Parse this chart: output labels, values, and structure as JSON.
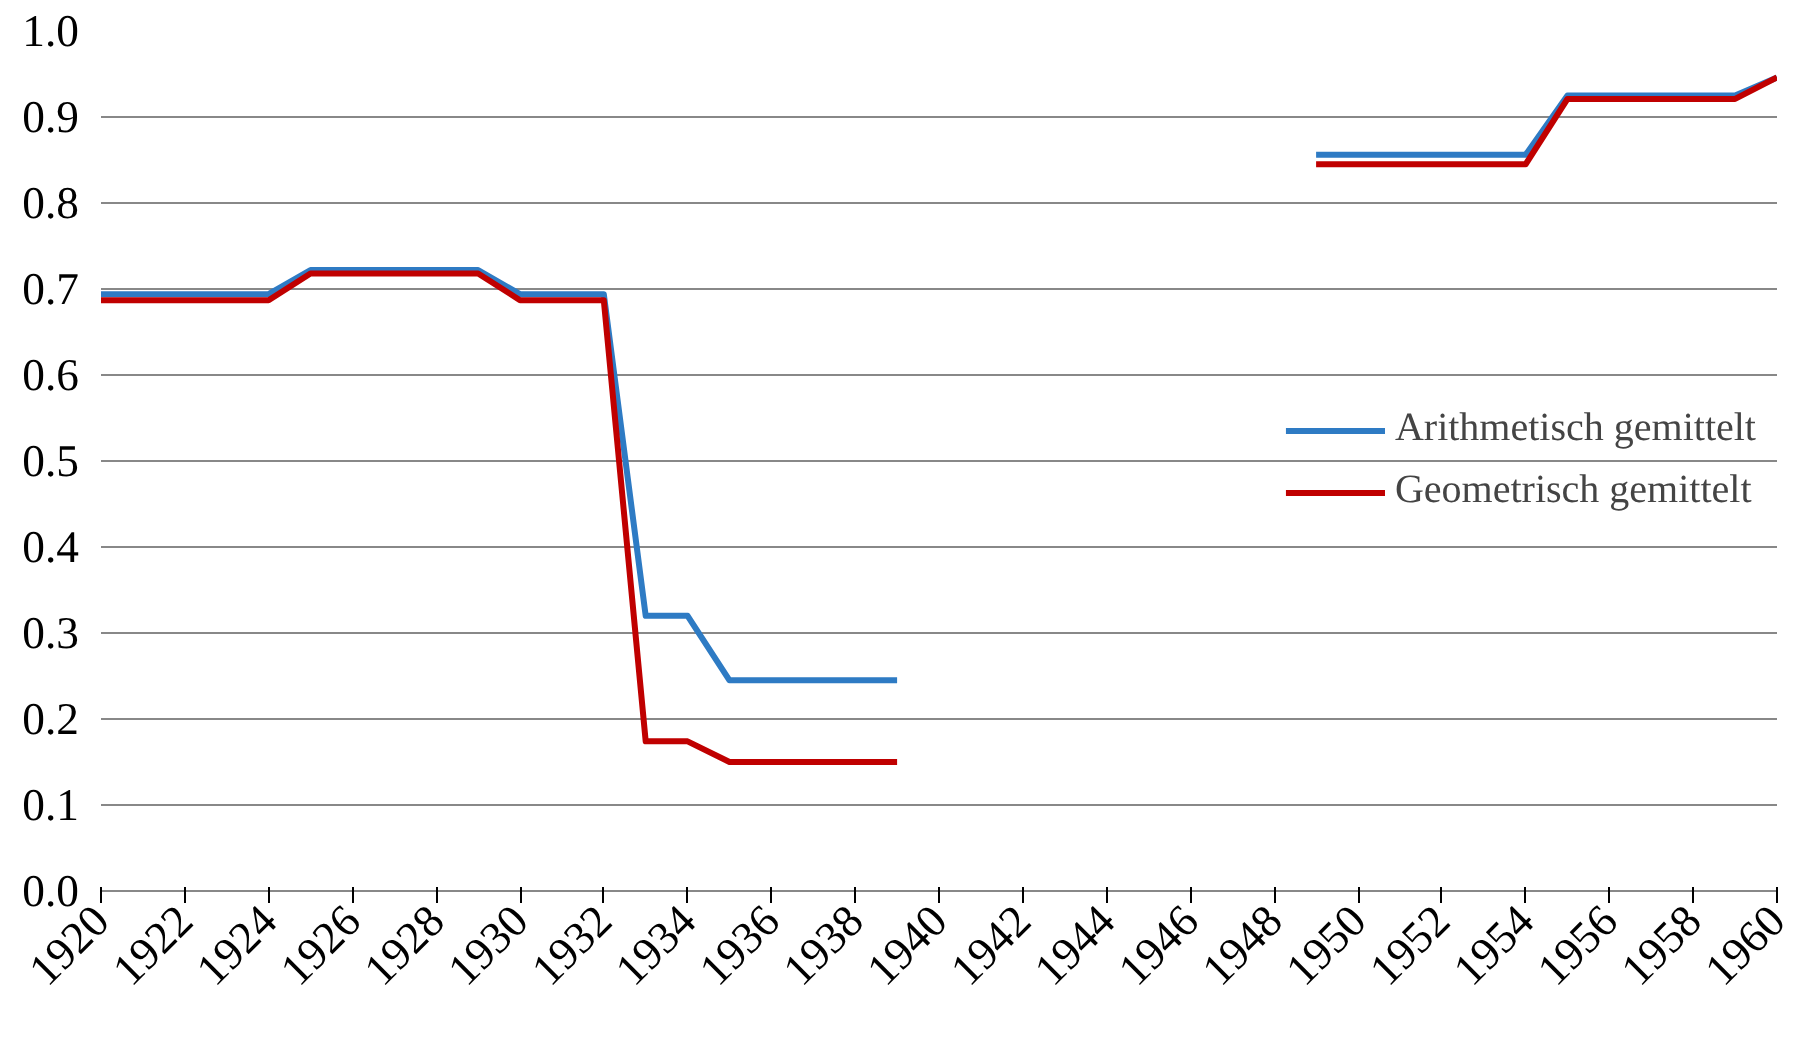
{
  "chart_data": {
    "type": "line",
    "x": [
      1920,
      1921,
      1922,
      1923,
      1924,
      1925,
      1926,
      1927,
      1928,
      1929,
      1930,
      1931,
      1932,
      1933,
      1934,
      1935,
      1936,
      1937,
      1938,
      1939,
      1940,
      1941,
      1942,
      1943,
      1944,
      1945,
      1946,
      1947,
      1948,
      1949,
      1950,
      1951,
      1952,
      1953,
      1954,
      1955,
      1956,
      1957,
      1958,
      1959,
      1960
    ],
    "series": [
      {
        "name": "Arithmetisch gemittelt",
        "color": "#2e7bc4",
        "values": [
          0.694,
          0.694,
          0.694,
          0.694,
          0.694,
          0.722,
          0.722,
          0.722,
          0.722,
          0.722,
          0.694,
          0.694,
          0.694,
          0.32,
          0.32,
          0.245,
          0.245,
          0.245,
          0.245,
          0.245,
          null,
          null,
          null,
          null,
          null,
          null,
          null,
          null,
          null,
          0.856,
          0.856,
          0.856,
          0.856,
          0.856,
          0.856,
          0.925,
          0.925,
          0.925,
          0.925,
          0.925,
          0.946
        ]
      },
      {
        "name": "Geometrisch gemittelt",
        "color": "#c00000",
        "values": [
          0.687,
          0.687,
          0.687,
          0.687,
          0.687,
          0.718,
          0.718,
          0.718,
          0.718,
          0.718,
          0.687,
          0.687,
          0.687,
          0.174,
          0.174,
          0.15,
          0.15,
          0.15,
          0.15,
          0.15,
          null,
          null,
          null,
          null,
          null,
          null,
          null,
          null,
          null,
          0.845,
          0.845,
          0.845,
          0.845,
          0.845,
          0.845,
          0.921,
          0.921,
          0.921,
          0.921,
          0.921,
          0.946
        ]
      }
    ],
    "xlim": [
      1920,
      1960
    ],
    "xticks": [
      1920,
      1922,
      1924,
      1926,
      1928,
      1930,
      1932,
      1934,
      1936,
      1938,
      1940,
      1942,
      1944,
      1946,
      1948,
      1950,
      1952,
      1954,
      1956,
      1958,
      1960
    ],
    "ylim": [
      0,
      1
    ],
    "yticks": [
      {
        "value": 0,
        "label": "0.0"
      },
      {
        "value": 0.1,
        "label": "0.1"
      },
      {
        "value": 0.2,
        "label": "0.2"
      },
      {
        "value": 0.3,
        "label": "0.3"
      },
      {
        "value": 0.4,
        "label": "0.4"
      },
      {
        "value": 0.5,
        "label": "0.5"
      },
      {
        "value": 0.6,
        "label": "0.6"
      },
      {
        "value": 0.7,
        "label": "0.7"
      },
      {
        "value": 0.8,
        "label": "0.8"
      },
      {
        "value": 0.9,
        "label": "0.9"
      },
      {
        "value": 1,
        "label": "1.0"
      }
    ],
    "grid": "y",
    "legend": "right",
    "marker": "none",
    "line_style": "solid"
  }
}
